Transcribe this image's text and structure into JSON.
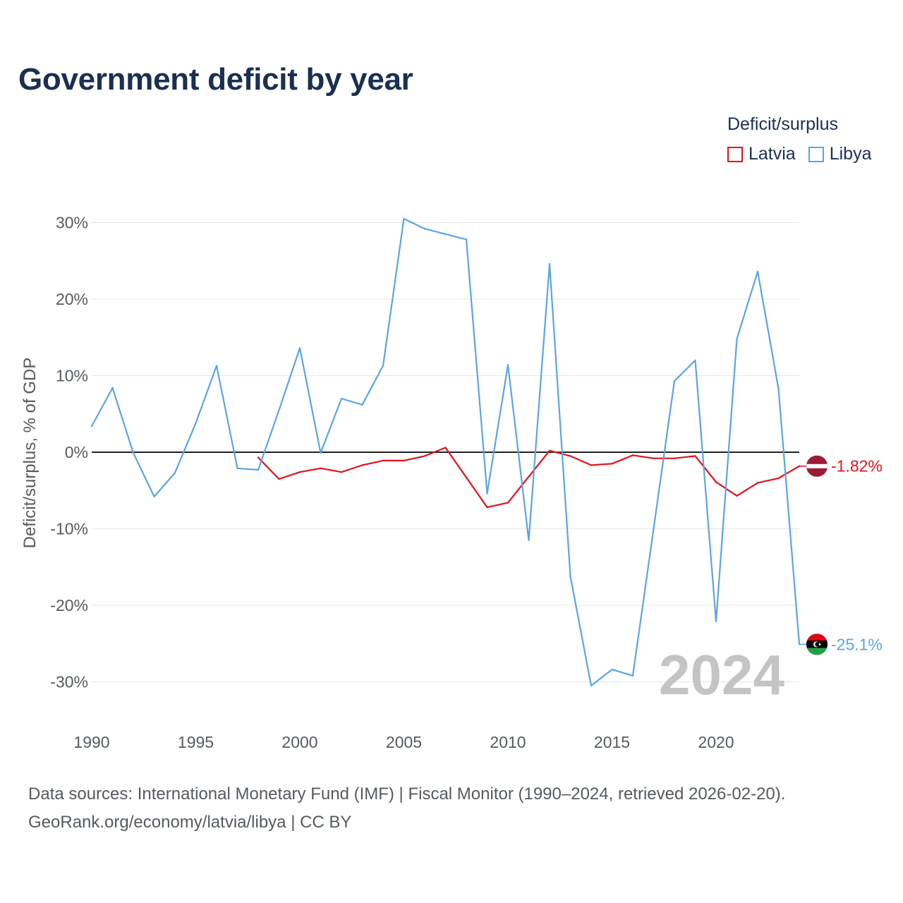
{
  "colors": {
    "latvia": "#e3121b",
    "libya": "#5aa5e3",
    "title": "#1b3050",
    "grid": "#e6e6e6",
    "zero": "#222222",
    "watermark": "#c4c4c4"
  },
  "chart_data": {
    "type": "line",
    "title": "Government deficit by year",
    "xlabel": "",
    "ylabel": "Deficit/surplus, % of GDP",
    "legend_title": "Deficit/surplus",
    "legend_position": "top-right",
    "grid": true,
    "xlim": [
      1990,
      2024
    ],
    "ylim": [
      -35,
      33
    ],
    "x_ticks": [
      1990,
      1995,
      2000,
      2005,
      2010,
      2015,
      2020
    ],
    "x_tick_labels": [
      "1990",
      "1995",
      "2000",
      "2005",
      "2010",
      "2015",
      "2020"
    ],
    "y_ticks": [
      30,
      20,
      10,
      0,
      -10,
      -20,
      -30
    ],
    "y_tick_labels": [
      "30%",
      "20%",
      "10%",
      "0%",
      "-10%",
      "-20%",
      "-30%"
    ],
    "year_marker": "2024",
    "series": [
      {
        "name": "Latvia",
        "color_key": "latvia",
        "end_label": "-1.82%",
        "x": [
          1998,
          1999,
          2000,
          2001,
          2002,
          2003,
          2004,
          2005,
          2006,
          2007,
          2008,
          2009,
          2010,
          2011,
          2012,
          2013,
          2014,
          2015,
          2016,
          2017,
          2018,
          2019,
          2020,
          2021,
          2022,
          2023,
          2024
        ],
        "values": [
          -0.7,
          -3.5,
          -2.6,
          -2.1,
          -2.6,
          -1.7,
          -1.1,
          -1.1,
          -0.5,
          0.6,
          -3.3,
          -7.2,
          -6.6,
          -3.2,
          0.2,
          -0.5,
          -1.7,
          -1.5,
          -0.4,
          -0.8,
          -0.8,
          -0.5,
          -3.9,
          -5.7,
          -4.0,
          -3.4,
          -1.82
        ]
      },
      {
        "name": "Libya",
        "color_key": "libya",
        "end_label": "-25.1%",
        "x": [
          1990,
          1991,
          1992,
          1993,
          1994,
          1995,
          1996,
          1997,
          1998,
          1999,
          2000,
          2001,
          2002,
          2003,
          2004,
          2005,
          2006,
          2007,
          2008,
          2009,
          2010,
          2011,
          2012,
          2013,
          2014,
          2015,
          2016,
          2017,
          2018,
          2019,
          2020,
          2021,
          2022,
          2023,
          2024
        ],
        "values": [
          3.4,
          8.4,
          -0.1,
          -5.8,
          -2.7,
          3.8,
          11.3,
          -2.1,
          -2.3,
          5.5,
          13.6,
          -0.1,
          7.0,
          6.2,
          11.3,
          30.5,
          29.2,
          28.5,
          27.8,
          -5.4,
          11.4,
          -11.5,
          24.6,
          -16.2,
          -30.5,
          -28.4,
          -29.2,
          -10.0,
          9.3,
          12.0,
          -22.1,
          14.8,
          23.6,
          8.3,
          -25.1
        ]
      }
    ]
  },
  "footer": {
    "sources": "Data sources: International Monetary Fund (IMF) | Fiscal Monitor (1990–2024, retrieved 2026-02-20).",
    "credit": "GeoRank.org/economy/latvia/libya | CC BY"
  }
}
